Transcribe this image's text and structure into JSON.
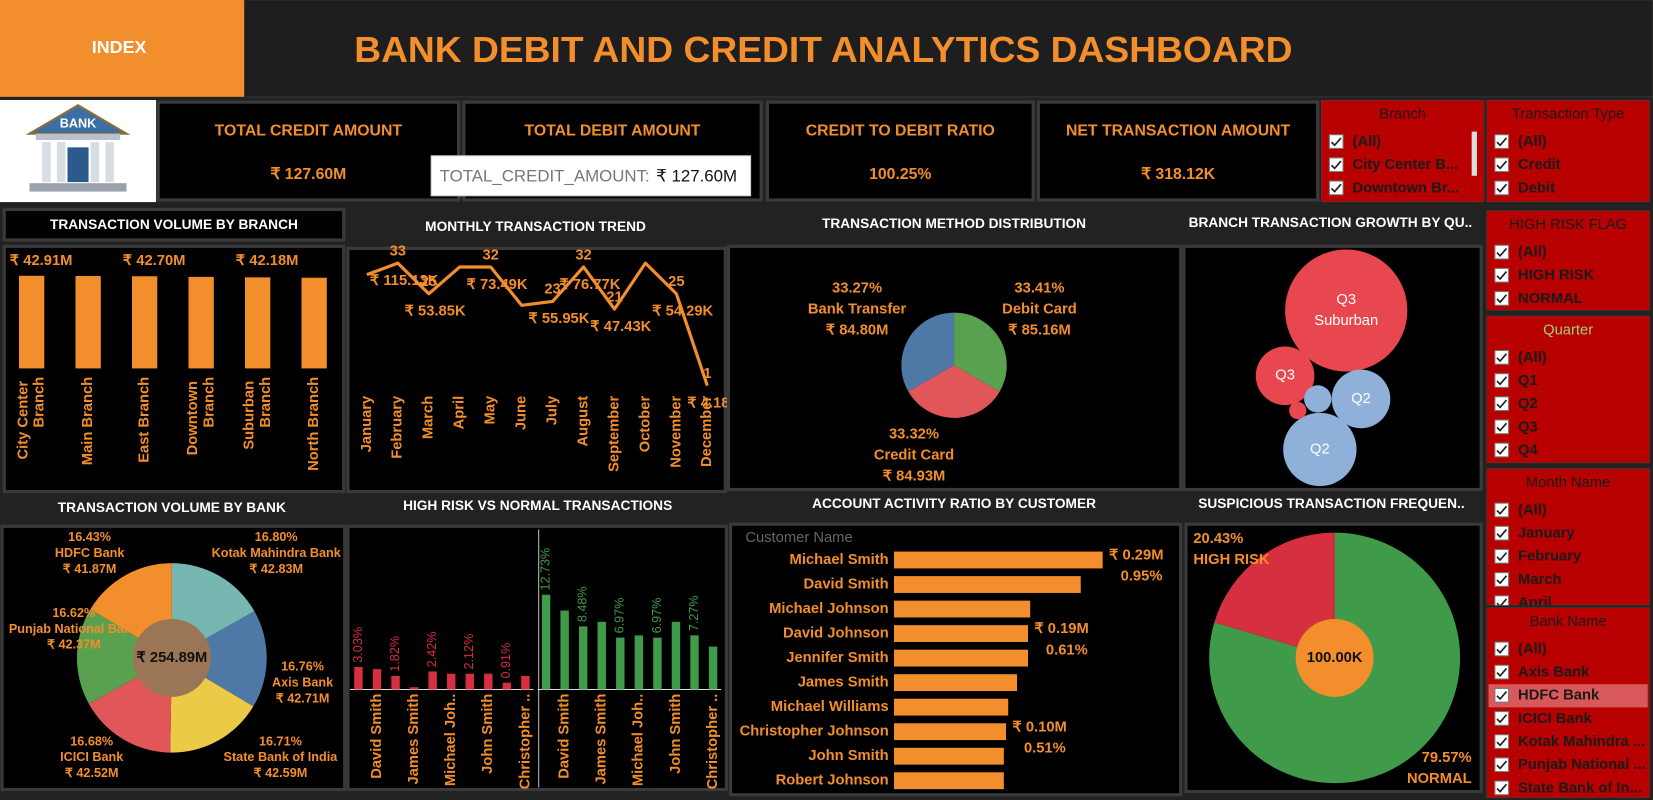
{
  "header": {
    "index_button": "INDEX",
    "title": "BANK DEBIT AND CREDIT ANALYTICS DASHBOARD",
    "logo_text": "BANK"
  },
  "kpis": [
    {
      "label": "TOTAL CREDIT AMOUNT",
      "value": "₹ 127.60M"
    },
    {
      "label": "TOTAL DEBIT AMOUNT"
    },
    {
      "label": "CREDIT TO DEBIT RATIO",
      "value": "100.25%"
    },
    {
      "label": "NET TRANSACTION AMOUNT",
      "value": "₹ 318.12K"
    }
  ],
  "tooltip": {
    "label": "TOTAL_CREDIT_AMOUNT:",
    "value": "₹ 127.60M"
  },
  "chart_data": [
    {
      "type": "bar",
      "title": "TRANSACTION VOLUME BY BRANCH",
      "categories": [
        "City Center Branch",
        "Main Branch",
        "East Branch",
        "Downtown Branch",
        "Suburban Branch",
        "North Branch"
      ],
      "values": [
        42.91,
        42.8,
        42.7,
        42.4,
        42.18,
        42.0
      ],
      "value_labels": [
        "₹ 42.91M",
        null,
        "₹ 42.70M",
        null,
        "₹ 42.18M",
        null
      ],
      "color": "#f28e2b"
    },
    {
      "type": "line",
      "title": "MONTHLY TRANSACTION TREND",
      "categories": [
        "January",
        "February",
        "March",
        "April",
        "May",
        "June",
        "July",
        "August",
        "September",
        "October",
        "November",
        "December"
      ],
      "values": [
        30,
        33,
        25,
        32,
        32,
        22,
        23,
        32,
        21,
        33,
        25,
        1
      ],
      "value_labels": [
        null,
        "33",
        "25",
        null,
        "32",
        null,
        "23",
        "32",
        "21",
        null,
        "25",
        "1"
      ],
      "amounts": [
        null,
        115.13,
        53.85,
        null,
        73.49,
        null,
        55.95,
        76.77,
        47.43,
        null,
        54.29,
        4.18
      ],
      "amount_labels": [
        null,
        "₹ 115.13K",
        "₹ 53.85K",
        null,
        "₹ 73.49K",
        null,
        "₹ 55.95K",
        "₹ 76.77K",
        "₹ 47.43K",
        null,
        "₹ 54.29K",
        "₹ 4.18K"
      ],
      "color": "#f28e2b"
    },
    {
      "type": "pie",
      "title": "TRANSACTION METHOD DISTRIBUTION",
      "categories": [
        "Debit Card",
        "Credit Card",
        "Bank Transfer"
      ],
      "values": [
        33.41,
        33.32,
        33.27
      ],
      "value_labels": [
        "33.41%",
        "33.32%",
        "33.27%"
      ],
      "amount_labels": [
        "₹ 85.16M",
        "₹ 84.93M",
        "₹ 84.80M"
      ],
      "colors": [
        "#59a14f",
        "#e15759",
        "#4e79a7"
      ]
    },
    {
      "type": "bubble",
      "title": "BRANCH TRANSACTION GROWTH BY QU..",
      "labels": [
        "Q3",
        "Q3",
        "Q2",
        "Q2",
        null,
        null
      ],
      "sublabels": [
        "Suburban",
        null,
        null,
        null,
        null,
        null
      ],
      "values": [
        100,
        23,
        23,
        36,
        5,
        2
      ],
      "colors": [
        "#e8474f",
        "#e8474f",
        "#8fb0d8",
        "#8fb0d8",
        "#8fb0d8",
        "#e8474f"
      ]
    },
    {
      "type": "donut",
      "title": "TRANSACTION VOLUME BY BANK",
      "center_label": "₹ 254.89M",
      "center_color": "#9b7656",
      "categories": [
        "Kotak Mahindra Bank",
        "Axis Bank",
        "State Bank of India",
        "ICICI Bank",
        "Punjab National Bank",
        "HDFC Bank"
      ],
      "values": [
        16.8,
        16.76,
        16.71,
        16.68,
        16.62,
        16.43
      ],
      "value_labels": [
        "16.80%",
        "16.76%",
        "16.71%",
        "16.68%",
        "16.62%",
        "16.43%"
      ],
      "amount_labels": [
        "₹ 42.83M",
        "₹ 42.71M",
        "₹ 42.59M",
        "₹ 42.52M",
        "₹ 42.37M",
        "₹ 41.87M"
      ],
      "colors": [
        "#76b7b2",
        "#4e79a7",
        "#edc948",
        "#e15759",
        "#59a14f",
        "#f28e2b"
      ]
    },
    {
      "type": "paneled-bar",
      "title": "HIGH RISK VS NORMAL TRANSACTIONS",
      "categories": [
        null,
        "David Smith",
        null,
        "James Smith",
        null,
        "Michael Joh..",
        null,
        "John Smith",
        null,
        "Christopher .."
      ],
      "panels": [
        {
          "color": "#d62f3f",
          "values": [
            3.03,
            2.73,
            1.82,
            0.3,
            2.42,
            2.12,
            2.12,
            2.12,
            0.91,
            1.82
          ],
          "value_labels": [
            "3.03%",
            null,
            "1.82%",
            null,
            "2.42%",
            null,
            "2.12%",
            null,
            "0.91%",
            null
          ]
        },
        {
          "color": "#3f9a4a",
          "values": [
            12.73,
            10.61,
            8.48,
            9.09,
            6.97,
            7.27,
            6.97,
            9.09,
            7.27,
            5.76
          ],
          "value_labels": [
            "12.73%",
            null,
            "8.48%",
            null,
            "6.97%",
            null,
            "6.97%",
            null,
            "7.27%",
            null
          ]
        }
      ]
    },
    {
      "type": "hbar",
      "title": "ACCOUNT ACTIVITY RATIO BY CUSTOMER",
      "header": "Customer Name",
      "categories": [
        "Michael Smith",
        "David Smith",
        "Michael Johnson",
        "David Johnson",
        "Jennifer Smith",
        "James Smith",
        "Michael Williams",
        "Christopher Johnson",
        "John Smith",
        "Robert Johnson"
      ],
      "values": [
        0.95,
        0.85,
        0.62,
        0.61,
        0.61,
        0.56,
        0.52,
        0.51,
        0.5,
        0.5
      ],
      "value_labels": [
        "0.95%",
        null,
        null,
        "0.61%",
        null,
        null,
        null,
        "0.51%",
        null,
        null
      ],
      "amount_labels": [
        "₹ 0.29M",
        null,
        null,
        "₹ 0.19M",
        null,
        null,
        null,
        "₹ 0.10M",
        null,
        null
      ],
      "color": "#f28e2b"
    },
    {
      "type": "donut",
      "title": "SUSPICIOUS TRANSACTION FREQUEN..",
      "center_label": "100.00K",
      "center_color": "#f28e2b",
      "categories": [
        "NORMAL",
        "HIGH RISK"
      ],
      "values": [
        79.57,
        20.43
      ],
      "value_labels": [
        "79.57%",
        "20.43%"
      ],
      "colors": [
        "#3f9a4a",
        "#d62f3f"
      ]
    }
  ],
  "filters": [
    {
      "title": "Branch",
      "items": [
        "(All)",
        "City Center B...",
        "Downtown Br..."
      ]
    },
    {
      "title": "Transaction Type",
      "items": [
        "(All)",
        "Credit",
        "Debit"
      ]
    },
    {
      "title": "HIGH RISK FLAG",
      "items": [
        "(All)",
        "HIGH RISK",
        "NORMAL"
      ]
    },
    {
      "title": "Quarter",
      "title_color": "#9bd36b",
      "items": [
        "(All)",
        "Q1",
        "Q2",
        "Q3",
        "Q4"
      ]
    },
    {
      "title": "Month Name",
      "items": [
        "(All)",
        "January",
        "February",
        "March",
        "April"
      ]
    },
    {
      "title": "Bank Name",
      "highlighted": 2,
      "items": [
        "(All)",
        "Axis Bank",
        "HDFC Bank",
        "ICICI Bank",
        "Kotak Mahindra ...",
        "Punjab National ...",
        "State Bank of In..."
      ]
    }
  ]
}
